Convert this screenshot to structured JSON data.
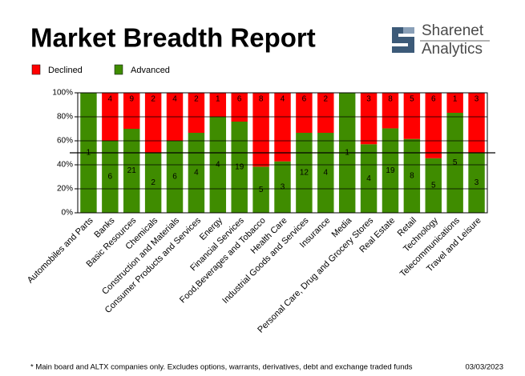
{
  "brand": {
    "name": "Sharenet",
    "tagline": "Analytics"
  },
  "chart_data": {
    "type": "stacked_percent_bar",
    "title": "Market Breadth Report",
    "categories": [
      "Automobiles and Parts",
      "Banks",
      "Basic Resources",
      "Chemicals",
      "Construction and Materials",
      "Consumer Products and Services",
      "Energy",
      "Financial Services",
      "Food,Beverages and Tobacco",
      "Health Care",
      "Industrial Goods and Services",
      "Insurance",
      "Media",
      "Personal Care, Drug and Grocery Stores",
      "Real Estate",
      "Retail",
      "Technology",
      "Telecommunications",
      "Travel and Leisure"
    ],
    "series": [
      {
        "name": "Declined",
        "color": "#ff0000",
        "values": [
          0,
          4,
          9,
          2,
          4,
          2,
          1,
          6,
          8,
          4,
          6,
          2,
          0,
          3,
          8,
          5,
          6,
          1,
          3
        ]
      },
      {
        "name": "Advanced",
        "color": "#3f8c00",
        "values": [
          1,
          6,
          21,
          2,
          6,
          4,
          4,
          19,
          5,
          3,
          12,
          4,
          1,
          4,
          19,
          8,
          5,
          5,
          3
        ]
      }
    ],
    "ylim": [
      0,
      100
    ],
    "yticks": [
      {
        "value": 0,
        "label": "0%"
      },
      {
        "value": 20,
        "label": "20%"
      },
      {
        "value": 40,
        "label": "40%"
      },
      {
        "value": 60,
        "label": "60%"
      },
      {
        "value": 80,
        "label": "80%"
      },
      {
        "value": 100,
        "label": "100%"
      }
    ],
    "reference_line": 50,
    "grid": true,
    "footnote": "* Main board and ALTX companies only. Excludes options, warrants, derivatives, debt and exchange traded funds",
    "date": "03/03/2023"
  }
}
